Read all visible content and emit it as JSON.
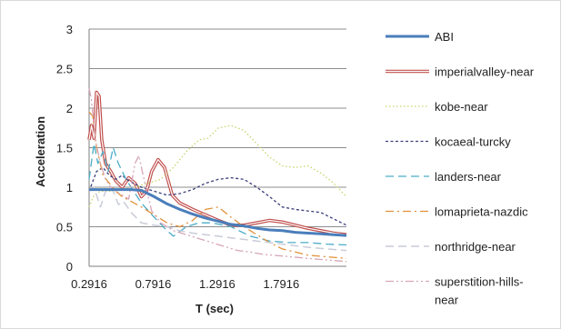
{
  "chart_data": {
    "type": "line",
    "title": "",
    "xlabel": "T (sec)",
    "ylabel": "Acceleration",
    "xlim": [
      0.2916,
      2.3
    ],
    "ylim": [
      0,
      3
    ],
    "xticks": [
      "0.2916",
      "0.7916",
      "1.2916",
      "1.7916"
    ],
    "yticks": [
      "0",
      "0.5",
      "1",
      "1.5",
      "2",
      "2.5",
      "3"
    ],
    "grid": "horizontal",
    "legend_position": "right",
    "series": [
      {
        "name": "ABI",
        "color": "#4a7ebb",
        "dash": "solid",
        "width": 3,
        "points": [
          [
            0.2916,
            0.97
          ],
          [
            0.4,
            0.97
          ],
          [
            0.5,
            0.97
          ],
          [
            0.62,
            0.97
          ],
          [
            0.7,
            0.96
          ],
          [
            0.8,
            0.88
          ],
          [
            0.9,
            0.79
          ],
          [
            1.0,
            0.72
          ],
          [
            1.1,
            0.66
          ],
          [
            1.2,
            0.61
          ],
          [
            1.3,
            0.57
          ],
          [
            1.4,
            0.53
          ],
          [
            1.5,
            0.51
          ],
          [
            1.6,
            0.48
          ],
          [
            1.7,
            0.46
          ],
          [
            1.8,
            0.45
          ],
          [
            1.9,
            0.43
          ],
          [
            2.0,
            0.42
          ],
          [
            2.1,
            0.41
          ],
          [
            2.2,
            0.4
          ],
          [
            2.3,
            0.39
          ]
        ]
      },
      {
        "name": "imperialvalley-near",
        "color": "#c0504d",
        "dash": "double",
        "width": 2,
        "points": [
          [
            0.2916,
            1.6
          ],
          [
            0.31,
            1.78
          ],
          [
            0.33,
            1.62
          ],
          [
            0.35,
            2.2
          ],
          [
            0.37,
            2.15
          ],
          [
            0.39,
            1.6
          ],
          [
            0.42,
            1.3
          ],
          [
            0.46,
            1.2
          ],
          [
            0.5,
            1.08
          ],
          [
            0.55,
            1.0
          ],
          [
            0.6,
            1.12
          ],
          [
            0.65,
            1.05
          ],
          [
            0.7,
            0.88
          ],
          [
            0.74,
            0.95
          ],
          [
            0.78,
            1.2
          ],
          [
            0.83,
            1.35
          ],
          [
            0.88,
            1.25
          ],
          [
            0.94,
            0.9
          ],
          [
            1.0,
            0.8
          ],
          [
            1.1,
            0.72
          ],
          [
            1.2,
            0.65
          ],
          [
            1.3,
            0.58
          ],
          [
            1.4,
            0.52
          ],
          [
            1.5,
            0.52
          ],
          [
            1.6,
            0.55
          ],
          [
            1.7,
            0.58
          ],
          [
            1.8,
            0.56
          ],
          [
            1.9,
            0.52
          ],
          [
            2.0,
            0.48
          ],
          [
            2.1,
            0.45
          ],
          [
            2.2,
            0.42
          ],
          [
            2.3,
            0.4
          ]
        ]
      },
      {
        "name": "kobe-near",
        "color": "#c8d36b",
        "dash": "dot",
        "width": 1.3,
        "points": [
          [
            0.2916,
            0.75
          ],
          [
            0.33,
            0.9
          ],
          [
            0.38,
            0.95
          ],
          [
            0.45,
            0.95
          ],
          [
            0.55,
            0.98
          ],
          [
            0.65,
            1.0
          ],
          [
            0.75,
            1.05
          ],
          [
            0.85,
            1.1
          ],
          [
            0.95,
            1.25
          ],
          [
            1.05,
            1.45
          ],
          [
            1.15,
            1.6
          ],
          [
            1.22,
            1.62
          ],
          [
            1.3,
            1.75
          ],
          [
            1.4,
            1.78
          ],
          [
            1.5,
            1.72
          ],
          [
            1.6,
            1.55
          ],
          [
            1.7,
            1.38
          ],
          [
            1.8,
            1.27
          ],
          [
            1.9,
            1.25
          ],
          [
            2.0,
            1.27
          ],
          [
            2.1,
            1.18
          ],
          [
            2.2,
            1.05
          ],
          [
            2.3,
            0.88
          ]
        ]
      },
      {
        "name": "kocaeal-turcky",
        "color": "#3b3f7a",
        "dash": "shortdash",
        "width": 1.3,
        "points": [
          [
            0.2916,
            0.95
          ],
          [
            0.35,
            1.2
          ],
          [
            0.4,
            1.25
          ],
          [
            0.45,
            1.15
          ],
          [
            0.5,
            1.1
          ],
          [
            0.55,
            1.15
          ],
          [
            0.6,
            1.08
          ],
          [
            0.7,
            1.0
          ],
          [
            0.8,
            0.95
          ],
          [
            0.9,
            0.9
          ],
          [
            1.0,
            0.92
          ],
          [
            1.1,
            0.97
          ],
          [
            1.2,
            1.05
          ],
          [
            1.3,
            1.1
          ],
          [
            1.4,
            1.12
          ],
          [
            1.5,
            1.1
          ],
          [
            1.6,
            1.0
          ],
          [
            1.7,
            0.88
          ],
          [
            1.8,
            0.75
          ],
          [
            1.9,
            0.72
          ],
          [
            2.0,
            0.7
          ],
          [
            2.1,
            0.68
          ],
          [
            2.2,
            0.6
          ],
          [
            2.3,
            0.52
          ]
        ]
      },
      {
        "name": "landers-near",
        "color": "#4bacc6",
        "dash": "longdash",
        "width": 1.3,
        "points": [
          [
            0.2916,
            1.1
          ],
          [
            0.33,
            1.55
          ],
          [
            0.36,
            1.3
          ],
          [
            0.4,
            1.45
          ],
          [
            0.44,
            1.2
          ],
          [
            0.48,
            1.5
          ],
          [
            0.52,
            1.3
          ],
          [
            0.58,
            1.1
          ],
          [
            0.64,
            0.95
          ],
          [
            0.7,
            0.8
          ],
          [
            0.8,
            0.62
          ],
          [
            0.9,
            0.45
          ],
          [
            0.95,
            0.38
          ],
          [
            1.05,
            0.5
          ],
          [
            1.15,
            0.55
          ],
          [
            1.25,
            0.55
          ],
          [
            1.4,
            0.5
          ],
          [
            1.55,
            0.38
          ],
          [
            1.7,
            0.32
          ],
          [
            1.85,
            0.3
          ],
          [
            2.0,
            0.3
          ],
          [
            2.15,
            0.28
          ],
          [
            2.3,
            0.27
          ]
        ]
      },
      {
        "name": "lomaprieta-nazdic",
        "color": "#e0913b",
        "dash": "dashdot",
        "width": 1.3,
        "points": [
          [
            0.2916,
            1.95
          ],
          [
            0.32,
            1.9
          ],
          [
            0.35,
            1.5
          ],
          [
            0.4,
            1.15
          ],
          [
            0.45,
            1.05
          ],
          [
            0.5,
            0.95
          ],
          [
            0.55,
            0.88
          ],
          [
            0.62,
            0.82
          ],
          [
            0.7,
            0.75
          ],
          [
            0.8,
            0.65
          ],
          [
            0.9,
            0.55
          ],
          [
            1.0,
            0.5
          ],
          [
            1.1,
            0.58
          ],
          [
            1.2,
            0.72
          ],
          [
            1.3,
            0.75
          ],
          [
            1.4,
            0.62
          ],
          [
            1.5,
            0.5
          ],
          [
            1.6,
            0.4
          ],
          [
            1.7,
            0.3
          ],
          [
            1.8,
            0.22
          ],
          [
            1.9,
            0.18
          ],
          [
            2.0,
            0.14
          ],
          [
            2.15,
            0.12
          ],
          [
            2.3,
            0.1
          ]
        ]
      },
      {
        "name": "northridge-near",
        "color": "#c9ccd8",
        "dash": "longdash",
        "width": 1.5,
        "points": [
          [
            0.2916,
            0.95
          ],
          [
            0.33,
            1.0
          ],
          [
            0.38,
            0.75
          ],
          [
            0.43,
            1.0
          ],
          [
            0.48,
            0.95
          ],
          [
            0.52,
            0.78
          ],
          [
            0.56,
            0.82
          ],
          [
            0.62,
            0.68
          ],
          [
            0.7,
            0.55
          ],
          [
            0.8,
            0.52
          ],
          [
            0.9,
            0.5
          ],
          [
            1.0,
            0.45
          ],
          [
            1.1,
            0.42
          ],
          [
            1.2,
            0.4
          ],
          [
            1.3,
            0.38
          ],
          [
            1.4,
            0.36
          ],
          [
            1.5,
            0.34
          ],
          [
            1.6,
            0.32
          ],
          [
            1.7,
            0.3
          ],
          [
            1.8,
            0.28
          ],
          [
            1.9,
            0.26
          ],
          [
            2.0,
            0.24
          ],
          [
            2.15,
            0.22
          ],
          [
            2.3,
            0.2
          ]
        ]
      },
      {
        "name": "superstition-hills-near",
        "color": "#d6a6b8",
        "dash": "dashdotdot",
        "width": 1.3,
        "points": [
          [
            0.2916,
            2.25
          ],
          [
            0.31,
            2.1
          ],
          [
            0.34,
            1.6
          ],
          [
            0.38,
            1.3
          ],
          [
            0.42,
            1.1
          ],
          [
            0.46,
            1.0
          ],
          [
            0.5,
            0.95
          ],
          [
            0.55,
            0.9
          ],
          [
            0.6,
            0.85
          ],
          [
            0.65,
            1.3
          ],
          [
            0.68,
            1.4
          ],
          [
            0.72,
            1.1
          ],
          [
            0.78,
            0.7
          ],
          [
            0.85,
            0.55
          ],
          [
            0.95,
            0.45
          ],
          [
            1.05,
            0.4
          ],
          [
            1.15,
            0.35
          ],
          [
            1.25,
            0.3
          ],
          [
            1.35,
            0.25
          ],
          [
            1.45,
            0.2
          ],
          [
            1.55,
            0.18
          ],
          [
            1.65,
            0.15
          ],
          [
            1.8,
            0.13
          ],
          [
            2.0,
            0.1
          ],
          [
            2.15,
            0.08
          ],
          [
            2.3,
            0.06
          ]
        ]
      }
    ]
  }
}
